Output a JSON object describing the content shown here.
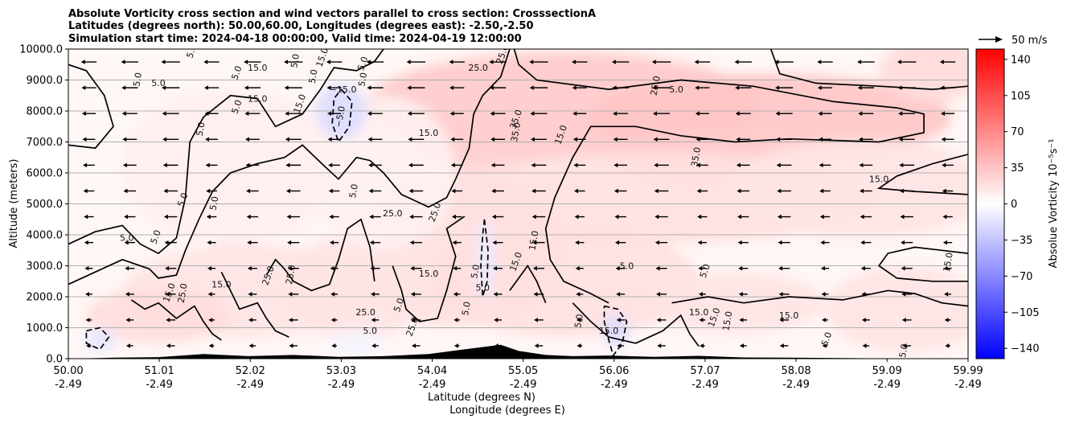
{
  "chart_data": {
    "type": "heatmap",
    "title_lines": [
      "Absolute Vorticity cross section and wind vectors parallel to cross section: CrosssectionA",
      "Latitudes (degrees north): 50.00,60.00, Longitudes (degrees east): -2.50,-2.50",
      "Simulation start time: 2024-04-18 00:00:00, Valid time: 2024-04-19 12:00:00"
    ],
    "xlabel_lines": [
      "Latitude (degrees N)",
      "Longitude (degrees E)"
    ],
    "ylabel": "Altitude (meters)",
    "x_ticks": [
      {
        "lat": "50.00",
        "lon": "-2.49"
      },
      {
        "lat": "51.01",
        "lon": "-2.49"
      },
      {
        "lat": "52.02",
        "lon": "-2.49"
      },
      {
        "lat": "53.03",
        "lon": "-2.49"
      },
      {
        "lat": "54.04",
        "lon": "-2.49"
      },
      {
        "lat": "55.05",
        "lon": "-2.49"
      },
      {
        "lat": "56.06",
        "lon": "-2.49"
      },
      {
        "lat": "57.07",
        "lon": "-2.49"
      },
      {
        "lat": "58.08",
        "lon": "-2.49"
      },
      {
        "lat": "59.09",
        "lon": "-2.49"
      },
      {
        "lat": "59.99",
        "lon": "-2.49"
      }
    ],
    "xlim": [
      50.0,
      59.99
    ],
    "ylim": [
      0,
      10000
    ],
    "y_ticks": [
      "0.0",
      "1000.0",
      "2000.0",
      "3000.0",
      "4000.0",
      "5000.0",
      "6000.0",
      "7000.0",
      "8000.0",
      "9000.0",
      "10000.0"
    ],
    "grid": "horizontal",
    "colorbar": {
      "label": "Absolue Vorticity 10⁻⁵s⁻¹",
      "min": -150,
      "max": 150,
      "ticks": [
        "−140",
        "−105",
        "−70",
        "−35",
        "0",
        "35",
        "70",
        "105",
        "140"
      ],
      "tick_values": [
        -140,
        -105,
        -70,
        -35,
        0,
        35,
        70,
        105,
        140
      ],
      "colormap": "bwr"
    },
    "quiver_key": {
      "label": "50 m/s"
    },
    "wind_direction": "westward (towards lower latitude)",
    "contour_labels": [
      {
        "text": "5.0",
        "lat": 51.4,
        "alt": 9900
      },
      {
        "text": "5.0",
        "lat": 50.8,
        "alt": 9000
      },
      {
        "text": "5.0",
        "lat": 51.0,
        "alt": 8800
      },
      {
        "text": "5.0",
        "lat": 51.9,
        "alt": 9200
      },
      {
        "text": "5.0",
        "lat": 52.55,
        "alt": 9600
      },
      {
        "text": "15.0",
        "lat": 52.1,
        "alt": 9300
      },
      {
        "text": "5.0",
        "lat": 53.3,
        "alt": 9500
      },
      {
        "text": "5.0",
        "lat": 53.3,
        "alt": 9000
      },
      {
        "text": "15.0",
        "lat": 53.55,
        "alt": 10000
      },
      {
        "text": "15.0",
        "lat": 52.85,
        "alt": 9700
      },
      {
        "text": "5.0",
        "lat": 52.75,
        "alt": 9100
      },
      {
        "text": "−15.0",
        "lat": 53.05,
        "alt": 8600
      },
      {
        "text": "5.0",
        "lat": 51.9,
        "alt": 8100
      },
      {
        "text": "5.0",
        "lat": 51.5,
        "alt": 7400
      },
      {
        "text": "15.0",
        "lat": 52.1,
        "alt": 8300
      },
      {
        "text": "15.0",
        "lat": 52.6,
        "alt": 8200
      },
      {
        "text": "−5.0",
        "lat": 53.05,
        "alt": 7800
      },
      {
        "text": "25.0",
        "lat": 54.55,
        "alt": 9300
      },
      {
        "text": "25.0",
        "lat": 54.85,
        "alt": 9800
      },
      {
        "text": "25.0",
        "lat": 56.55,
        "alt": 8800
      },
      {
        "text": "5.0",
        "lat": 56.75,
        "alt": 8600
      },
      {
        "text": "35.0",
        "lat": 55.0,
        "alt": 7700
      },
      {
        "text": "35.0",
        "lat": 55.0,
        "alt": 7300
      },
      {
        "text": "15.0",
        "lat": 54.0,
        "alt": 7200
      },
      {
        "text": "15.0",
        "lat": 55.5,
        "alt": 7200
      },
      {
        "text": "35.0",
        "lat": 57.0,
        "alt": 6500
      },
      {
        "text": "15.0",
        "lat": 59.0,
        "alt": 5700
      },
      {
        "text": "5.0",
        "lat": 51.3,
        "alt": 5100
      },
      {
        "text": "5.0",
        "lat": 51.65,
        "alt": 5000
      },
      {
        "text": "5.0",
        "lat": 50.65,
        "alt": 3800
      },
      {
        "text": "5.0",
        "lat": 51.0,
        "alt": 3900
      },
      {
        "text": "5.0",
        "lat": 53.2,
        "alt": 5400
      },
      {
        "text": "25.0",
        "lat": 53.6,
        "alt": 4600
      },
      {
        "text": "25.0",
        "lat": 54.1,
        "alt": 4700
      },
      {
        "text": "15.0",
        "lat": 55.2,
        "alt": 3800
      },
      {
        "text": "15.0",
        "lat": 54.0,
        "alt": 2650
      },
      {
        "text": "15.0",
        "lat": 55.0,
        "alt": 3100
      },
      {
        "text": "15.0",
        "lat": 59.8,
        "alt": 3100
      },
      {
        "text": "15.0",
        "lat": 51.7,
        "alt": 2300
      },
      {
        "text": "25.0",
        "lat": 52.25,
        "alt": 2650
      },
      {
        "text": "25.0",
        "lat": 52.5,
        "alt": 2700
      },
      {
        "text": "5.0",
        "lat": 56.2,
        "alt": 2900
      },
      {
        "text": "5.0",
        "lat": 57.1,
        "alt": 2800
      },
      {
        "text": "5.0",
        "lat": 54.55,
        "alt": 2800
      },
      {
        "text": "5.0",
        "lat": 54.6,
        "alt": 2200
      },
      {
        "text": "15.0",
        "lat": 51.15,
        "alt": 2100
      },
      {
        "text": "25.0",
        "lat": 51.3,
        "alt": 2100
      },
      {
        "text": "15.0",
        "lat": 57.0,
        "alt": 1400
      },
      {
        "text": "15.0",
        "lat": 57.2,
        "alt": 1300
      },
      {
        "text": "15.0",
        "lat": 57.35,
        "alt": 1200
      },
      {
        "text": "15.0",
        "lat": 58.0,
        "alt": 1300
      },
      {
        "text": "5.0",
        "lat": 58.45,
        "alt": 600
      },
      {
        "text": "15.0",
        "lat": 59.3,
        "alt": 150
      },
      {
        "text": "5.0",
        "lat": 53.35,
        "alt": 800
      },
      {
        "text": "5.0",
        "lat": 53.7,
        "alt": 1700
      },
      {
        "text": "5.0",
        "lat": 54.45,
        "alt": 1600
      },
      {
        "text": "25.0",
        "lat": 53.3,
        "alt": 1400
      },
      {
        "text": "25.0",
        "lat": 53.85,
        "alt": 1000
      },
      {
        "text": "5.0",
        "lat": 55.7,
        "alt": 1200
      },
      {
        "text": "15.0",
        "lat": 56.0,
        "alt": 800
      }
    ]
  }
}
